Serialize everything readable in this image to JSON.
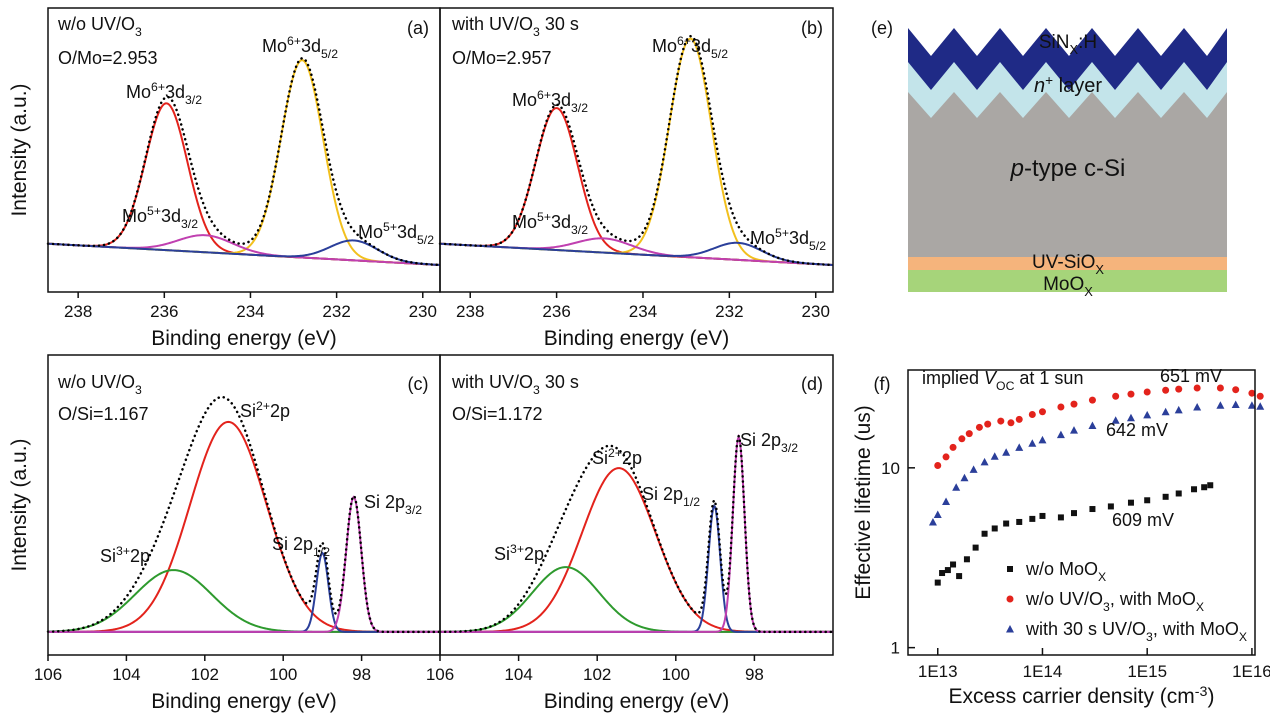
{
  "chart_data": [
    {
      "type": "peak-fit",
      "panel_label": "(a)",
      "title": [
        {
          "text": "w/o UV/O"
        },
        {
          "text": "3",
          "style": "sub"
        }
      ],
      "subtitle": "O/Mo=2.953",
      "xlabel": "Binding energy (eV)",
      "ylabel": "Intensity (a.u.)",
      "xlim": [
        238.7,
        229.6
      ],
      "xticks": [
        238,
        236,
        234,
        232,
        230
      ],
      "ylim": [
        0,
        100
      ],
      "background": {
        "color": "#2e9a2e",
        "values": [
          17,
          9.5
        ]
      },
      "envelope_color": "#000000",
      "peaks": [
        {
          "label": [
            {
              "text": "Mo"
            },
            {
              "text": "6+",
              "style": "sup"
            },
            {
              "text": "3d"
            },
            {
              "text": "3/2",
              "style": "sub"
            }
          ],
          "color": "#e3231c",
          "center": 235.95,
          "height": 51.7,
          "fwhm": 1.15
        },
        {
          "label": [
            {
              "text": "Mo"
            },
            {
              "text": "6+",
              "style": "sup"
            },
            {
              "text": "3d"
            },
            {
              "text": "5/2",
              "style": "sub"
            }
          ],
          "color": "#f2c01e",
          "center": 232.8,
          "height": 69.5,
          "fwhm": 1.15
        },
        {
          "label": [
            {
              "text": "Mo"
            },
            {
              "text": "5+",
              "style": "sup"
            },
            {
              "text": "3d"
            },
            {
              "text": "3/2",
              "style": "sub"
            }
          ],
          "color": "#c040b0",
          "center": 235.05,
          "height": 6,
          "fwhm": 1.5
        },
        {
          "label": [
            {
              "text": "Mo"
            },
            {
              "text": "5+",
              "style": "sup"
            },
            {
              "text": "3d"
            },
            {
              "text": "5/2",
              "style": "sub"
            }
          ],
          "color": "#2b3f9a",
          "center": 231.6,
          "height": 7,
          "fwhm": 1.3
        }
      ]
    },
    {
      "type": "peak-fit",
      "panel_label": "(b)",
      "title": [
        {
          "text": "with UV/O"
        },
        {
          "text": "3",
          "style": "sub"
        },
        {
          "text": " 30 s"
        }
      ],
      "subtitle": "O/Mo=2.957",
      "xlabel": "Binding energy (eV)",
      "xlim": [
        238.7,
        229.6
      ],
      "xticks": [
        238,
        236,
        234,
        232,
        230
      ],
      "ylim": [
        0,
        100
      ],
      "background": {
        "color": "#2e9a2e",
        "values": [
          17,
          9.5
        ]
      },
      "envelope_color": "#000000",
      "peaks": [
        {
          "label": [
            {
              "text": "Mo"
            },
            {
              "text": "6+",
              "style": "sup"
            },
            {
              "text": "3d"
            },
            {
              "text": "3/2",
              "style": "sub"
            }
          ],
          "color": "#e3231c",
          "center": 236.0,
          "height": 50,
          "fwhm": 1.15
        },
        {
          "label": [
            {
              "text": "Mo"
            },
            {
              "text": "6+",
              "style": "sup"
            },
            {
              "text": "3d"
            },
            {
              "text": "5/2",
              "style": "sub"
            }
          ],
          "color": "#f2c01e",
          "center": 232.9,
          "height": 77,
          "fwhm": 1.15
        },
        {
          "label": [
            {
              "text": "Mo"
            },
            {
              "text": "5+",
              "style": "sup"
            },
            {
              "text": "3d"
            },
            {
              "text": "3/2",
              "style": "sub"
            }
          ],
          "color": "#c040b0",
          "center": 234.9,
          "height": 5,
          "fwhm": 1.5
        },
        {
          "label": [
            {
              "text": "Mo"
            },
            {
              "text": "5+",
              "style": "sup"
            },
            {
              "text": "3d"
            },
            {
              "text": "5/2",
              "style": "sub"
            }
          ],
          "color": "#2b3f9a",
          "center": 231.8,
          "height": 6,
          "fwhm": 1.3
        }
      ]
    },
    {
      "type": "peak-fit",
      "panel_label": "(c)",
      "title": [
        {
          "text": "w/o UV/O"
        },
        {
          "text": "3",
          "style": "sub"
        }
      ],
      "subtitle": "O/Si=1.167",
      "xlabel": "Binding energy (eV)",
      "ylabel": "Intensity (a.u.)",
      "xlim": [
        106,
        96
      ],
      "xticks": [
        106,
        104,
        102,
        100,
        98
      ],
      "ylim": [
        0,
        100
      ],
      "background": {
        "color": "#c040b0",
        "values": [
          7.7,
          7.7
        ]
      },
      "envelope_color": "#000000",
      "peaks": [
        {
          "label": [
            {
              "text": "Si"
            },
            {
              "text": "2+",
              "style": "sup"
            },
            {
              "text": "2p"
            }
          ],
          "color": "#e3231c",
          "center": 101.4,
          "height": 70,
          "fwhm": 2.3
        },
        {
          "label": [
            {
              "text": "Si"
            },
            {
              "text": "3+",
              "style": "sup"
            },
            {
              "text": "2p"
            }
          ],
          "color": "#2e9a2e",
          "center": 102.8,
          "height": 20.6,
          "fwhm": 2.3
        },
        {
          "label": [
            {
              "text": "Si 2p"
            },
            {
              "text": "1/2",
              "style": "sub"
            }
          ],
          "color": "#2b3f9a",
          "center": 99.0,
          "height": 26.3,
          "fwhm": 0.36
        },
        {
          "label": [
            {
              "text": "Si 2p"
            },
            {
              "text": "3/2",
              "style": "sub"
            }
          ],
          "color": "#c040b0",
          "center": 98.2,
          "height": 45,
          "fwhm": 0.45
        }
      ]
    },
    {
      "type": "peak-fit",
      "panel_label": "(d)",
      "title": [
        {
          "text": "with UV/O"
        },
        {
          "text": "3",
          "style": "sub"
        },
        {
          "text": " 30 s"
        }
      ],
      "subtitle": "O/Si=1.172",
      "xlabel": "Binding energy (eV)",
      "xlim": [
        106,
        96
      ],
      "xticks": [
        106,
        104,
        102,
        100,
        98
      ],
      "ylim": [
        0,
        100
      ],
      "background": {
        "color": "#c040b0",
        "values": [
          7.7,
          7.7
        ]
      },
      "envelope_color": "#000000",
      "peaks": [
        {
          "label": [
            {
              "text": "Si"
            },
            {
              "text": "2+",
              "style": "sup"
            },
            {
              "text": "2p"
            }
          ],
          "color": "#e3231c",
          "center": 101.45,
          "height": 54.6,
          "fwhm": 2.2
        },
        {
          "label": [
            {
              "text": "Si"
            },
            {
              "text": "3+",
              "style": "sup"
            },
            {
              "text": "2p"
            }
          ],
          "color": "#2e9a2e",
          "center": 102.8,
          "height": 21.6,
          "fwhm": 2.0
        },
        {
          "label": [
            {
              "text": "Si 2p"
            },
            {
              "text": "1/2",
              "style": "sub"
            }
          ],
          "color": "#2b3f9a",
          "center": 99.02,
          "height": 42,
          "fwhm": 0.35
        },
        {
          "label": [
            {
              "text": "Si 2p"
            },
            {
              "text": "3/2",
              "style": "sub"
            }
          ],
          "color": "#c040b0",
          "center": 98.4,
          "height": 65,
          "fwhm": 0.35
        }
      ]
    },
    {
      "type": "scatter",
      "panel_label": "(f)",
      "xlabel": [
        {
          "text": "Excess carrier density (cm"
        },
        {
          "text": "-3",
          "style": "sup"
        },
        {
          "text": ")"
        }
      ],
      "ylabel": "Effective lifetime (us)",
      "xscale": "log",
      "yscale": "log",
      "xlim": [
        5200000000000.0,
        1.07e+16
      ],
      "ylim": [
        0.91,
        35
      ],
      "xticks": [
        {
          "value": 10000000000000.0,
          "label": "1E13"
        },
        {
          "value": 100000000000000.0,
          "label": "1E14"
        },
        {
          "value": 1000000000000000.0,
          "label": "1E15"
        },
        {
          "value": 1e+16,
          "label": "1E16"
        }
      ],
      "yticks": [
        1,
        10
      ],
      "legend": "lower right",
      "annotations": [
        {
          "text": [
            {
              "text": "implied "
            },
            {
              "text": "V",
              "style": "italic"
            },
            {
              "text": "OC",
              "style": "sub"
            },
            {
              "text": " at 1 sun"
            }
          ],
          "color": "#111111"
        },
        {
          "text": [
            {
              "text": "651 mV"
            }
          ],
          "color": "#e3231c"
        },
        {
          "text": [
            {
              "text": "642 mV"
            }
          ],
          "color": "#2b3f9a"
        },
        {
          "text": [
            {
              "text": "609 mV"
            }
          ],
          "color": "#111111"
        }
      ],
      "series": [
        {
          "name": [
            {
              "text": "w/o MoO"
            },
            {
              "text": "X",
              "style": "sub"
            }
          ],
          "color": "#111111",
          "marker": "square",
          "x": [
            10000000000000.0,
            11000000000000.0,
            12500000000000.0,
            14000000000000.0,
            16000000000000.0,
            19000000000000.0,
            23000000000000.0,
            28000000000000.0,
            35000000000000.0,
            45000000000000.0,
            60000000000000.0,
            80000000000000.0,
            100000000000000.0,
            150000000000000.0,
            200000000000000.0,
            300000000000000.0,
            450000000000000.0,
            700000000000000.0,
            1000000000000000.0,
            1500000000000000.0,
            2000000000000000.0,
            2800000000000000.0,
            3500000000000000.0,
            4000000000000000.0
          ],
          "values": [
            2.3,
            2.6,
            2.7,
            2.9,
            2.5,
            3.1,
            3.6,
            4.3,
            4.6,
            4.9,
            5.0,
            5.2,
            5.4,
            5.3,
            5.6,
            5.9,
            6.1,
            6.4,
            6.6,
            6.9,
            7.2,
            7.6,
            7.8,
            8.0
          ]
        },
        {
          "name": [
            {
              "text": "w/o UV/O"
            },
            {
              "text": "3",
              "style": "sub"
            },
            {
              "text": ", with MoO"
            },
            {
              "text": "X",
              "style": "sub"
            }
          ],
          "color": "#e3231c",
          "marker": "circle",
          "x": [
            10000000000000.0,
            12000000000000.0,
            14000000000000.0,
            17000000000000.0,
            20000000000000.0,
            25000000000000.0,
            30000000000000.0,
            40000000000000.0,
            50000000000000.0,
            60000000000000.0,
            80000000000000.0,
            100000000000000.0,
            150000000000000.0,
            200000000000000.0,
            300000000000000.0,
            500000000000000.0,
            700000000000000.0,
            1000000000000000.0,
            1500000000000000.0,
            2000000000000000.0,
            3000000000000000.0,
            5000000000000000.0,
            7000000000000000.0,
            1e+16,
            1.2e+16
          ],
          "values": [
            10.3,
            11.5,
            13,
            14.5,
            15.5,
            16.8,
            17.5,
            18.2,
            17.8,
            18.6,
            19.8,
            20.5,
            21.8,
            22.6,
            23.8,
            25,
            25.7,
            26.4,
            27,
            27.4,
            27.8,
            27.8,
            27.2,
            26,
            25
          ]
        },
        {
          "name": [
            {
              "text": "with 30 s UV/O"
            },
            {
              "text": "3",
              "style": "sub"
            },
            {
              "text": ", with MoO"
            },
            {
              "text": "X",
              "style": "sub"
            }
          ],
          "color": "#2b3f9a",
          "marker": "triangle",
          "x": [
            9000000000000.0,
            10000000000000.0,
            12000000000000.0,
            15000000000000.0,
            18000000000000.0,
            22000000000000.0,
            28000000000000.0,
            35000000000000.0,
            45000000000000.0,
            60000000000000.0,
            80000000000000.0,
            100000000000000.0,
            150000000000000.0,
            200000000000000.0,
            300000000000000.0,
            500000000000000.0,
            700000000000000.0,
            1000000000000000.0,
            1500000000000000.0,
            2000000000000000.0,
            3000000000000000.0,
            5000000000000000.0,
            7000000000000000.0,
            1e+16,
            1.2e+16
          ],
          "values": [
            5,
            5.5,
            6.5,
            7.8,
            8.8,
            9.8,
            10.8,
            11.6,
            12.2,
            13,
            13.7,
            14.3,
            15.3,
            16.2,
            17.2,
            18.4,
            19,
            19.7,
            20.5,
            21,
            21.8,
            22.3,
            22.5,
            22.3,
            22
          ]
        }
      ]
    }
  ],
  "diagram": {
    "panel_label": "(e)",
    "layers": [
      {
        "label": [
          {
            "text": "SiN"
          },
          {
            "text": "X",
            "style": "sub"
          },
          {
            "text": ":H"
          }
        ],
        "color": "#1f2a86",
        "text_color": "#ffffff"
      },
      {
        "label": [
          {
            "text": "n",
            "style": "italic"
          },
          {
            "text": "+",
            "style": "sup"
          },
          {
            "text": " layer"
          }
        ],
        "color": "#c3e4ea",
        "text_color": "#111111"
      },
      {
        "label": [
          {
            "text": "p",
            "style": "italic"
          },
          {
            "text": "-type c-Si"
          }
        ],
        "color": "#aaa7a4",
        "text_color": "#111111"
      },
      {
        "label": [
          {
            "text": "UV-SiO"
          },
          {
            "text": "X",
            "style": "sub"
          }
        ],
        "color": "#f5b47c",
        "text_color": "#111111"
      },
      {
        "label": [
          {
            "text": "MoO"
          },
          {
            "text": "X",
            "style": "sub"
          }
        ],
        "color": "#a6d47a",
        "text_color": "#111111"
      }
    ]
  }
}
